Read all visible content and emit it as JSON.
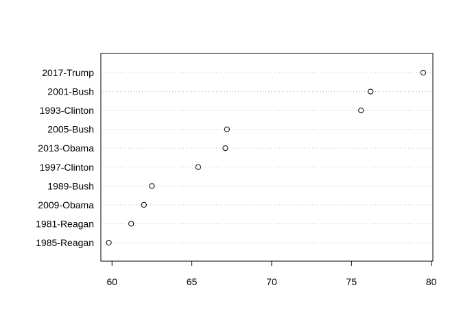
{
  "chart_data": {
    "type": "scatter",
    "title": "",
    "xlabel": "",
    "ylabel": "",
    "xlim": [
      59.3,
      80.1
    ],
    "x_ticks": [
      60,
      65,
      70,
      75,
      80
    ],
    "grid": "horizontal dotted",
    "categories": [
      "1985-Reagan",
      "1981-Reagan",
      "2009-Obama",
      "1989-Bush",
      "1997-Clinton",
      "2013-Obama",
      "2005-Bush",
      "1993-Clinton",
      "2001-Bush",
      "2017-Trump"
    ],
    "values": [
      59.8,
      61.2,
      62.0,
      62.5,
      65.4,
      67.1,
      67.2,
      75.6,
      76.2,
      79.5
    ]
  }
}
